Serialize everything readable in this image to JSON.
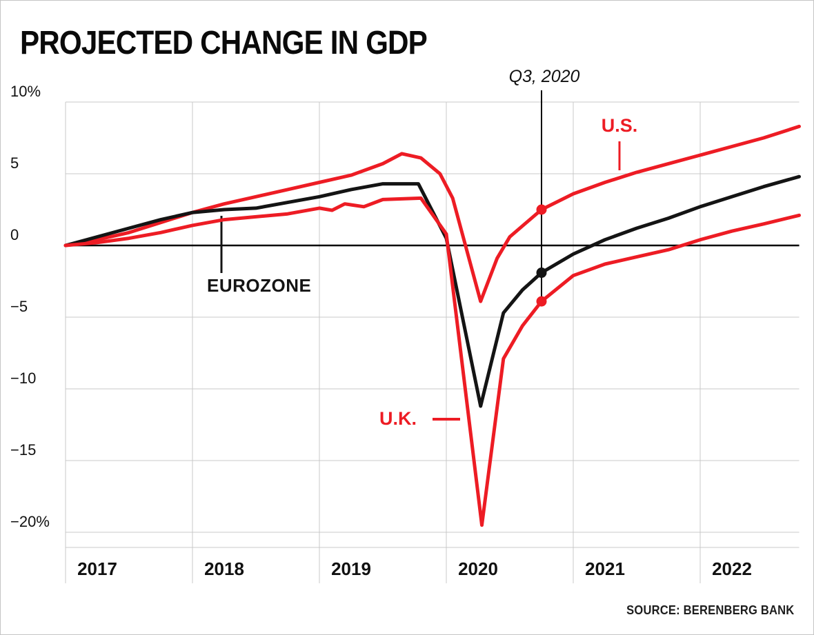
{
  "title": "PROJECTED CHANGE IN GDP",
  "source": "SOURCE: BERENBERG BANK",
  "annotation": {
    "label": "Q3, 2020",
    "x": 2020.75,
    "points": [
      {
        "series": "U.S.",
        "value": 2.5,
        "color": "red"
      },
      {
        "series": "EUROZONE",
        "value": -1.9,
        "color": "black"
      },
      {
        "series": "U.K.",
        "value": -3.9,
        "color": "red"
      }
    ]
  },
  "series_labels": {
    "us": "U.S.",
    "eurozone": "EUROZONE",
    "uk": "U.K."
  },
  "colors": {
    "red": "#ed1c24",
    "black": "#141414",
    "grid": "#c9c9c9",
    "axis": "#000000",
    "tick_text": "#111111"
  },
  "chart_data": {
    "type": "line",
    "title": "PROJECTED CHANGE IN GDP",
    "xlabel": "",
    "ylabel": "",
    "x_range": [
      2017.0,
      2022.78
    ],
    "y_range": [
      -22,
      10
    ],
    "grid": true,
    "legend_position": "inline-labels",
    "yticks": [
      {
        "value": 10,
        "label": "10%"
      },
      {
        "value": 5,
        "label": "5"
      },
      {
        "value": 0,
        "label": "0"
      },
      {
        "value": -5,
        "label": "−5"
      },
      {
        "value": -10,
        "label": "−10"
      },
      {
        "value": -15,
        "label": "−15"
      },
      {
        "value": -20,
        "label": "−20%"
      }
    ],
    "xticks": [
      {
        "value": 2017,
        "label": "2017"
      },
      {
        "value": 2018,
        "label": "2018"
      },
      {
        "value": 2019,
        "label": "2019"
      },
      {
        "value": 2020,
        "label": "2020"
      },
      {
        "value": 2021,
        "label": "2021"
      },
      {
        "value": 2022,
        "label": "2022"
      }
    ],
    "series": [
      {
        "id": "us",
        "name": "U.S.",
        "color": "red",
        "points": [
          [
            2017.0,
            0
          ],
          [
            2017.25,
            0.4
          ],
          [
            2017.5,
            0.9
          ],
          [
            2017.75,
            1.6
          ],
          [
            2018.0,
            2.3
          ],
          [
            2018.25,
            2.9
          ],
          [
            2018.5,
            3.4
          ],
          [
            2018.75,
            3.9
          ],
          [
            2019.0,
            4.4
          ],
          [
            2019.25,
            4.9
          ],
          [
            2019.5,
            5.7
          ],
          [
            2019.65,
            6.4
          ],
          [
            2019.8,
            6.1
          ],
          [
            2019.95,
            5.0
          ],
          [
            2020.05,
            3.3
          ],
          [
            2020.27,
            -3.9
          ],
          [
            2020.4,
            -0.9
          ],
          [
            2020.5,
            0.6
          ],
          [
            2020.75,
            2.5
          ],
          [
            2021.0,
            3.6
          ],
          [
            2021.25,
            4.4
          ],
          [
            2021.5,
            5.1
          ],
          [
            2021.75,
            5.7
          ],
          [
            2022.0,
            6.3
          ],
          [
            2022.25,
            6.9
          ],
          [
            2022.5,
            7.5
          ],
          [
            2022.78,
            8.3
          ]
        ]
      },
      {
        "id": "eurozone",
        "name": "EUROZONE",
        "color": "black",
        "points": [
          [
            2017.0,
            0
          ],
          [
            2017.25,
            0.6
          ],
          [
            2017.5,
            1.2
          ],
          [
            2017.75,
            1.8
          ],
          [
            2018.0,
            2.3
          ],
          [
            2018.25,
            2.5
          ],
          [
            2018.5,
            2.6
          ],
          [
            2018.75,
            3.0
          ],
          [
            2019.0,
            3.4
          ],
          [
            2019.25,
            3.9
          ],
          [
            2019.5,
            4.3
          ],
          [
            2019.78,
            4.3
          ],
          [
            2020.0,
            0.5
          ],
          [
            2020.27,
            -11.2
          ],
          [
            2020.45,
            -4.7
          ],
          [
            2020.6,
            -3.1
          ],
          [
            2020.75,
            -1.9
          ],
          [
            2021.0,
            -0.6
          ],
          [
            2021.25,
            0.4
          ],
          [
            2021.5,
            1.2
          ],
          [
            2021.75,
            1.9
          ],
          [
            2022.0,
            2.7
          ],
          [
            2022.25,
            3.4
          ],
          [
            2022.5,
            4.1
          ],
          [
            2022.78,
            4.8
          ]
        ]
      },
      {
        "id": "uk",
        "name": "U.K.",
        "color": "red",
        "points": [
          [
            2017.0,
            0
          ],
          [
            2017.25,
            0.2
          ],
          [
            2017.5,
            0.5
          ],
          [
            2017.75,
            0.9
          ],
          [
            2018.0,
            1.4
          ],
          [
            2018.25,
            1.8
          ],
          [
            2018.5,
            2.0
          ],
          [
            2018.75,
            2.2
          ],
          [
            2019.0,
            2.6
          ],
          [
            2019.1,
            2.45
          ],
          [
            2019.2,
            2.9
          ],
          [
            2019.35,
            2.7
          ],
          [
            2019.5,
            3.2
          ],
          [
            2019.8,
            3.3
          ],
          [
            2020.0,
            0.8
          ],
          [
            2020.28,
            -19.5
          ],
          [
            2020.45,
            -7.9
          ],
          [
            2020.6,
            -5.6
          ],
          [
            2020.75,
            -3.9
          ],
          [
            2021.0,
            -2.1
          ],
          [
            2021.25,
            -1.3
          ],
          [
            2021.5,
            -0.8
          ],
          [
            2021.75,
            -0.3
          ],
          [
            2022.0,
            0.4
          ],
          [
            2022.25,
            1.0
          ],
          [
            2022.5,
            1.5
          ],
          [
            2022.78,
            2.1
          ]
        ]
      }
    ]
  }
}
